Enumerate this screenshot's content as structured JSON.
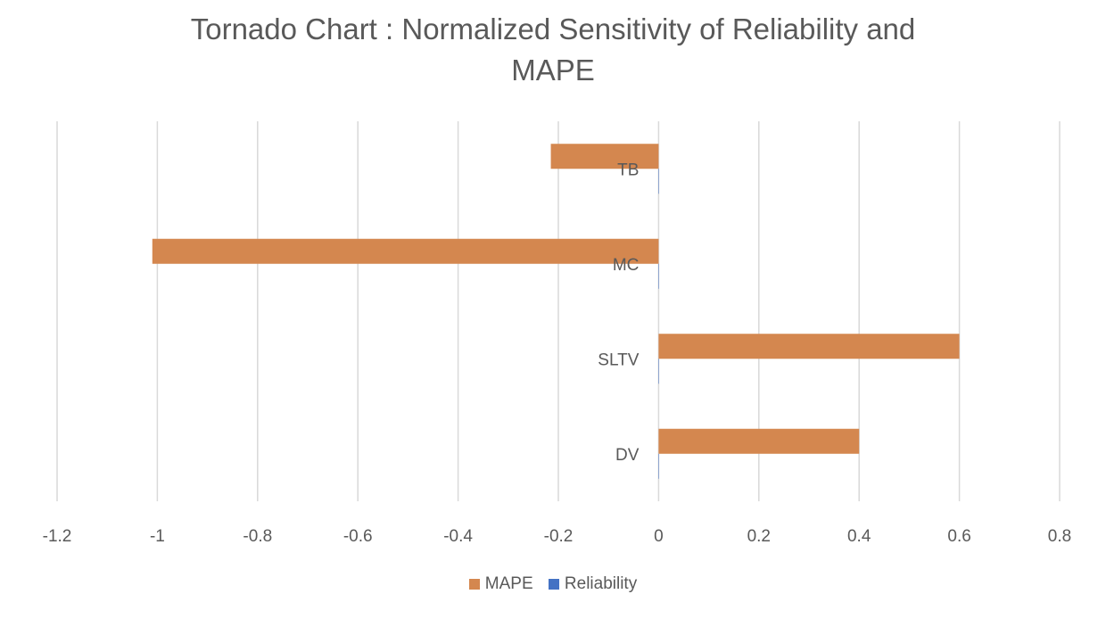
{
  "chart_data": {
    "type": "bar",
    "orientation": "horizontal",
    "title": "Tornado Chart : Normalized Sensitivity of Reliability and MAPE",
    "title_lines": [
      "Tornado Chart : Normalized Sensitivity of Reliability and",
      "MAPE"
    ],
    "categories": [
      "TB",
      "MC",
      "SLTV",
      "DV"
    ],
    "series": [
      {
        "name": "MAPE",
        "color": "#D4874F",
        "values": [
          -0.215,
          -1.01,
          0.6,
          0.4
        ]
      },
      {
        "name": "Reliability",
        "color": "#4472C4",
        "values": [
          0,
          0,
          0,
          0
        ]
      }
    ],
    "xlim": [
      -1.2,
      0.8
    ],
    "xticks": [
      "-1.2",
      "-1",
      "-0.8",
      "-0.6",
      "-0.4",
      "-0.2",
      "0",
      "0.2",
      "0.4",
      "0.6",
      "0.8"
    ],
    "xlabel": "",
    "ylabel": "",
    "grid": true,
    "legend_position": "bottom"
  }
}
